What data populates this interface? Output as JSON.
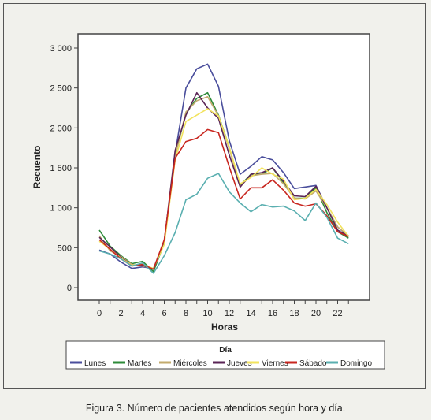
{
  "caption": "Figura 3. Número de pacientes atendidos según hora y día.",
  "chart_data": {
    "type": "line",
    "title": "",
    "xlabel": "Horas",
    "ylabel": "Recuento",
    "ylim": [
      0,
      3000
    ],
    "xlim": [
      0,
      23
    ],
    "grid": false,
    "legend_position": "bottom",
    "legend_title": "Día",
    "x": [
      0,
      1,
      2,
      3,
      4,
      5,
      6,
      7,
      8,
      9,
      10,
      11,
      12,
      13,
      14,
      15,
      16,
      17,
      18,
      19,
      20,
      21,
      22,
      23
    ],
    "x_ticks": [
      0,
      2,
      4,
      6,
      8,
      10,
      12,
      14,
      16,
      18,
      20,
      22
    ],
    "y_ticks": [
      0,
      500,
      1000,
      1500,
      2000,
      2500,
      3000
    ],
    "y_tick_labels": [
      "0",
      "500",
      "1 000",
      "1 500",
      "2 000",
      "2 500",
      "3 000"
    ],
    "series": [
      {
        "name": "Lunes",
        "color": "#4a4e9c",
        "values": [
          470,
          420,
          320,
          240,
          260,
          240,
          580,
          1680,
          2500,
          2740,
          2800,
          2520,
          1840,
          1420,
          1520,
          1640,
          1600,
          1440,
          1240,
          1260,
          1280,
          1000,
          760,
          640
        ]
      },
      {
        "name": "Martes",
        "color": "#2e8b3a",
        "values": [
          720,
          520,
          400,
          300,
          330,
          200,
          560,
          1660,
          2180,
          2370,
          2440,
          2160,
          1760,
          1280,
          1420,
          1420,
          1500,
          1310,
          1120,
          1120,
          1250,
          940,
          700,
          620
        ]
      },
      {
        "name": "Miércoles",
        "color": "#c3ab6e",
        "values": [
          650,
          460,
          390,
          290,
          270,
          240,
          560,
          1650,
          2200,
          2340,
          2390,
          2150,
          1740,
          1270,
          1400,
          1420,
          1430,
          1300,
          1120,
          1110,
          1210,
          1000,
          760,
          650
        ]
      },
      {
        "name": "Jueves",
        "color": "#5a2456",
        "values": [
          630,
          510,
          380,
          280,
          280,
          230,
          580,
          1720,
          2160,
          2440,
          2250,
          2120,
          1660,
          1260,
          1420,
          1440,
          1500,
          1330,
          1150,
          1140,
          1270,
          1000,
          720,
          640
        ]
      },
      {
        "name": "Viernes",
        "color": "#f2e35e",
        "values": [
          580,
          480,
          370,
          280,
          290,
          240,
          540,
          1600,
          2080,
          2160,
          2240,
          2150,
          1760,
          1300,
          1380,
          1500,
          1420,
          1360,
          1100,
          1120,
          1230,
          1040,
          820,
          640
        ]
      },
      {
        "name": "Sábado",
        "color": "#c8261f",
        "values": [
          600,
          480,
          360,
          270,
          290,
          230,
          600,
          1620,
          1830,
          1870,
          1980,
          1940,
          1510,
          1110,
          1250,
          1250,
          1350,
          1220,
          1060,
          1020,
          1050,
          900,
          700,
          640
        ]
      },
      {
        "name": "Domingo",
        "color": "#5aafb0",
        "values": [
          460,
          420,
          360,
          270,
          310,
          180,
          400,
          690,
          1100,
          1170,
          1370,
          1430,
          1200,
          1060,
          950,
          1040,
          1010,
          1020,
          960,
          840,
          1060,
          880,
          620,
          550
        ]
      }
    ]
  }
}
